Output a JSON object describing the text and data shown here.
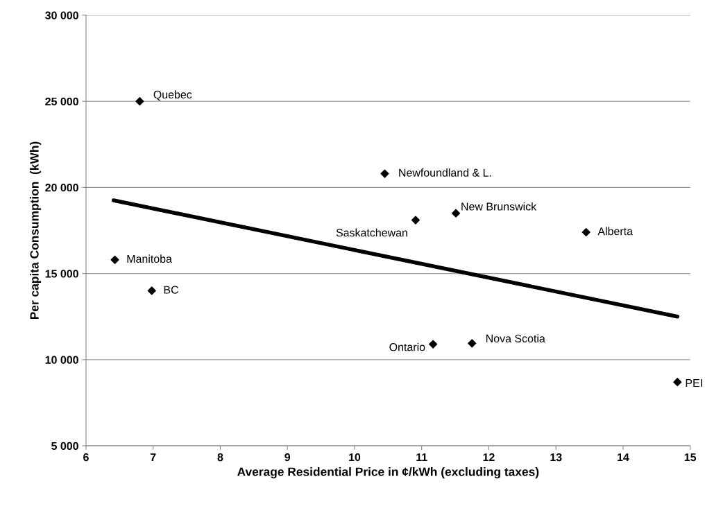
{
  "chart_data": {
    "type": "scatter",
    "xlabel": "Average Residential Price in ¢/kWh (excluding taxes)",
    "ylabel": "Per capita Consumption  (kWh)",
    "series": [
      {
        "color": "#000000",
        "marker": "diamond",
        "x": [
          6.8,
          10.45,
          10.91,
          11.51,
          13.45,
          6.43,
          6.98,
          11.17,
          11.75,
          14.81
        ],
        "values": [
          25000,
          20800,
          18100,
          18500,
          17400,
          15800,
          14000,
          10900,
          10950,
          8700
        ]
      },
      {
        "type": "line",
        "color": "#000000",
        "marker": "none",
        "line_style": "solid",
        "x": [
          6.41,
          14.81
        ],
        "values": [
          19250,
          12500
        ]
      }
    ],
    "annotations": [
      {
        "text": "Quebec",
        "x": 6.8,
        "y": 25000
      },
      {
        "text": "Newfoundland & L.",
        "x": 10.45,
        "y": 20800
      },
      {
        "text": "Saskatchewan",
        "x": 10.91,
        "y": 18100
      },
      {
        "text": "New Brunswick",
        "x": 11.51,
        "y": 18500
      },
      {
        "text": "Alberta",
        "x": 13.45,
        "y": 17400
      },
      {
        "text": "Manitoba",
        "x": 6.43,
        "y": 15800
      },
      {
        "text": "BC",
        "x": 6.98,
        "y": 14000
      },
      {
        "text": "Ontario",
        "x": 11.17,
        "y": 10900
      },
      {
        "text": "Nova Scotia",
        "x": 11.75,
        "y": 10950
      },
      {
        "text": "PEI",
        "x": 14.81,
        "y": 8700
      }
    ],
    "xlim": [
      6,
      15
    ],
    "xticks": [
      6,
      7,
      8,
      9,
      10,
      11,
      12,
      13,
      14,
      15
    ],
    "ylim": [
      5000,
      30000
    ],
    "yticks": [
      {
        "value": 5000,
        "label": "5 000"
      },
      {
        "value": 10000,
        "label": "10 000"
      },
      {
        "value": 15000,
        "label": "15 000"
      },
      {
        "value": 20000,
        "label": "20 000"
      },
      {
        "value": 25000,
        "label": "25 000"
      },
      {
        "value": 30000,
        "label": "30 000"
      }
    ],
    "grid": "y",
    "legend": false
  }
}
